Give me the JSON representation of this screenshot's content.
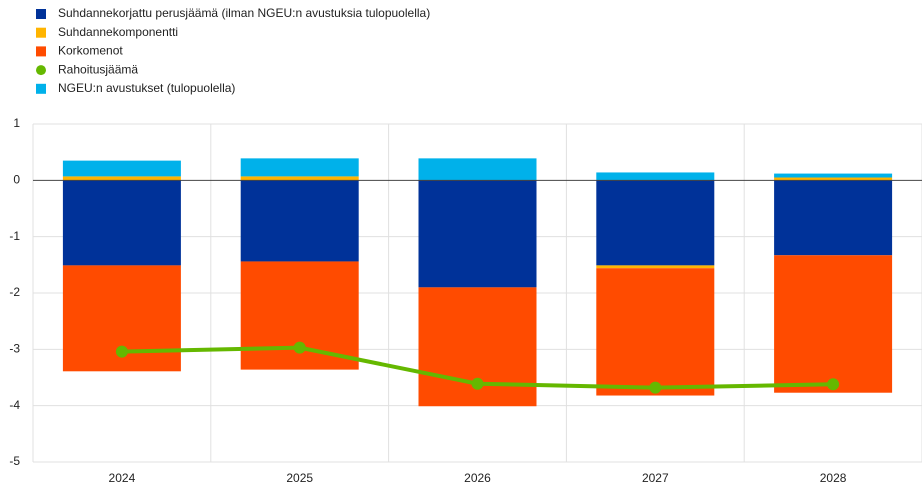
{
  "chart_data": {
    "type": "bar",
    "stacked": true,
    "categories": [
      "2024",
      "2025",
      "2026",
      "2027",
      "2028"
    ],
    "series": [
      {
        "name": "Suhdannekorjattu perusjäämä (ilman NGEU:n avustuksia tulopuolella)",
        "color": "#003299",
        "values": [
          -1.51,
          -1.44,
          -1.9,
          -1.51,
          -1.33
        ]
      },
      {
        "name": "Suhdannekomponentti",
        "color": "#ffb400",
        "values": [
          0.07,
          0.07,
          0.0,
          -0.05,
          0.05
        ]
      },
      {
        "name": "Korkomenot",
        "color": "#ff4b00",
        "values": [
          -1.88,
          -1.92,
          -2.11,
          -2.26,
          -2.44
        ]
      },
      {
        "name": "Rahoitusjäämä",
        "color": "#65b800",
        "type": "line",
        "values": [
          -3.04,
          -2.97,
          -3.61,
          -3.68,
          -3.62
        ]
      },
      {
        "name": "NGEU:n avustukset (tulopuolella)",
        "color": "#00b1ea",
        "values": [
          0.28,
          0.32,
          0.39,
          0.14,
          0.07
        ]
      }
    ],
    "ylim": [
      -5,
      1
    ],
    "yticks": [
      -5,
      -4,
      -3,
      -2,
      -1,
      0,
      1
    ],
    "grid": true
  }
}
